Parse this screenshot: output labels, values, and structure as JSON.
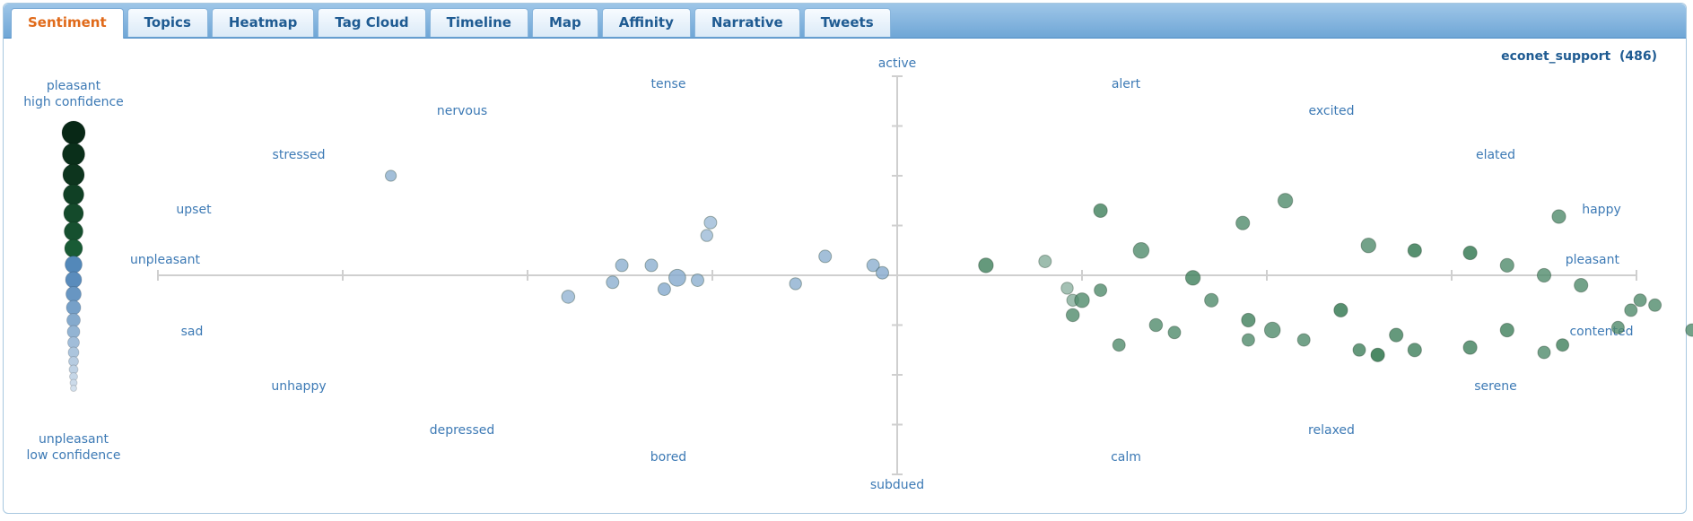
{
  "tabs": [
    {
      "label": "Sentiment",
      "active": true
    },
    {
      "label": "Topics"
    },
    {
      "label": "Heatmap"
    },
    {
      "label": "Tag Cloud"
    },
    {
      "label": "Timeline"
    },
    {
      "label": "Map"
    },
    {
      "label": "Affinity"
    },
    {
      "label": "Narrative"
    },
    {
      "label": "Tweets"
    }
  ],
  "header": {
    "user": "econet_support",
    "count": "(486)"
  },
  "legend": {
    "top_line1": "pleasant",
    "top_line2": "high confidence",
    "bottom_line1": "unpleasant",
    "bottom_line2": "low confidence"
  },
  "circumplex_labels": {
    "active": "active",
    "subdued": "subdued",
    "pleasant": "pleasant",
    "unpleasant": "unpleasant",
    "tense": "tense",
    "nervous": "nervous",
    "stressed": "stressed",
    "upset": "upset",
    "alert": "alert",
    "excited": "excited",
    "elated": "elated",
    "happy": "happy",
    "sad": "sad",
    "unhappy": "unhappy",
    "depressed": "depressed",
    "bored": "bored",
    "contented": "contented",
    "serene": "serene",
    "relaxed": "relaxed",
    "calm": "calm"
  },
  "colors": {
    "pleasant": "#1f6b3f",
    "unpleasant": "#2f6fab",
    "axis": "#cfcfcf",
    "label": "#3d7ab5",
    "tab_text": "#1f5b92",
    "tab_active": "#e06a1a"
  },
  "chart_data": {
    "type": "scatter",
    "xlim": [
      1,
      9
    ],
    "ylim": [
      1,
      9
    ],
    "points": [
      [
        2.26,
        7.0,
        0.35,
        0.3
      ],
      [
        3.99,
        6.06,
        0.5,
        0.2
      ],
      [
        3.97,
        5.8,
        0.45,
        0.2
      ],
      [
        3.22,
        4.57,
        0.55,
        0.25
      ],
      [
        3.46,
        4.86,
        0.5,
        0.3
      ],
      [
        3.51,
        5.2,
        0.5,
        0.3
      ],
      [
        3.67,
        5.2,
        0.5,
        0.3
      ],
      [
        3.81,
        4.95,
        0.9,
        0.35
      ],
      [
        3.92,
        4.9,
        0.5,
        0.3
      ],
      [
        3.74,
        4.72,
        0.5,
        0.35
      ],
      [
        4.45,
        4.83,
        0.45,
        0.3
      ],
      [
        4.61,
        5.38,
        0.5,
        0.3
      ],
      [
        4.87,
        5.2,
        0.5,
        0.3
      ],
      [
        4.92,
        5.05,
        0.5,
        0.35
      ],
      [
        5.8,
        5.28,
        0.5,
        0.3
      ],
      [
        5.95,
        4.5,
        0.45,
        0.3
      ],
      [
        5.92,
        4.74,
        0.45,
        0.25
      ],
      [
        6.1,
        6.3,
        0.6,
        0.7
      ],
      [
        6.87,
        6.05,
        0.6,
        0.6
      ],
      [
        7.1,
        6.5,
        0.7,
        0.6
      ],
      [
        8.58,
        6.18,
        0.6,
        0.6
      ],
      [
        7.55,
        5.6,
        0.7,
        0.6
      ],
      [
        6.32,
        5.5,
        0.8,
        0.6
      ],
      [
        5.48,
        5.2,
        0.7,
        0.7
      ],
      [
        8.3,
        5.2,
        0.6,
        0.6
      ],
      [
        8.5,
        5.0,
        0.6,
        0.6
      ],
      [
        8.7,
        4.8,
        0.6,
        0.6
      ],
      [
        9.02,
        4.5,
        0.5,
        0.6
      ],
      [
        8.97,
        4.3,
        0.5,
        0.6
      ],
      [
        9.1,
        4.4,
        0.5,
        0.6
      ],
      [
        9.38,
        4.5,
        0.5,
        0.6
      ],
      [
        8.9,
        3.95,
        0.5,
        0.6
      ],
      [
        8.5,
        3.45,
        0.5,
        0.6
      ],
      [
        9.3,
        3.9,
        0.5,
        0.6
      ],
      [
        6.2,
        3.6,
        0.5,
        0.6
      ],
      [
        6.9,
        3.7,
        0.5,
        0.6
      ],
      [
        7.5,
        3.5,
        0.5,
        0.7
      ],
      [
        7.6,
        3.4,
        0.6,
        0.9
      ],
      [
        7.8,
        3.5,
        0.6,
        0.7
      ],
      [
        6.0,
        4.5,
        0.7,
        0.6
      ],
      [
        6.1,
        4.7,
        0.5,
        0.6
      ],
      [
        5.95,
        4.2,
        0.55,
        0.6
      ],
      [
        6.4,
        4.0,
        0.55,
        0.6
      ],
      [
        7.03,
        3.9,
        0.8,
        0.6
      ],
      [
        7.2,
        3.7,
        0.5,
        0.6
      ],
      [
        6.5,
        3.85,
        0.5,
        0.6
      ],
      [
        7.7,
        3.8,
        0.6,
        0.7
      ],
      [
        8.3,
        3.9,
        0.6,
        0.7
      ],
      [
        8.6,
        3.6,
        0.5,
        0.7
      ],
      [
        8.1,
        3.55,
        0.6,
        0.7
      ],
      [
        6.6,
        4.95,
        0.7,
        0.7
      ],
      [
        7.8,
        5.5,
        0.6,
        0.8
      ],
      [
        8.1,
        5.45,
        0.6,
        0.8
      ],
      [
        6.7,
        4.5,
        0.6,
        0.6
      ],
      [
        7.4,
        4.3,
        0.6,
        0.8
      ],
      [
        6.9,
        4.1,
        0.6,
        0.7
      ]
    ]
  }
}
